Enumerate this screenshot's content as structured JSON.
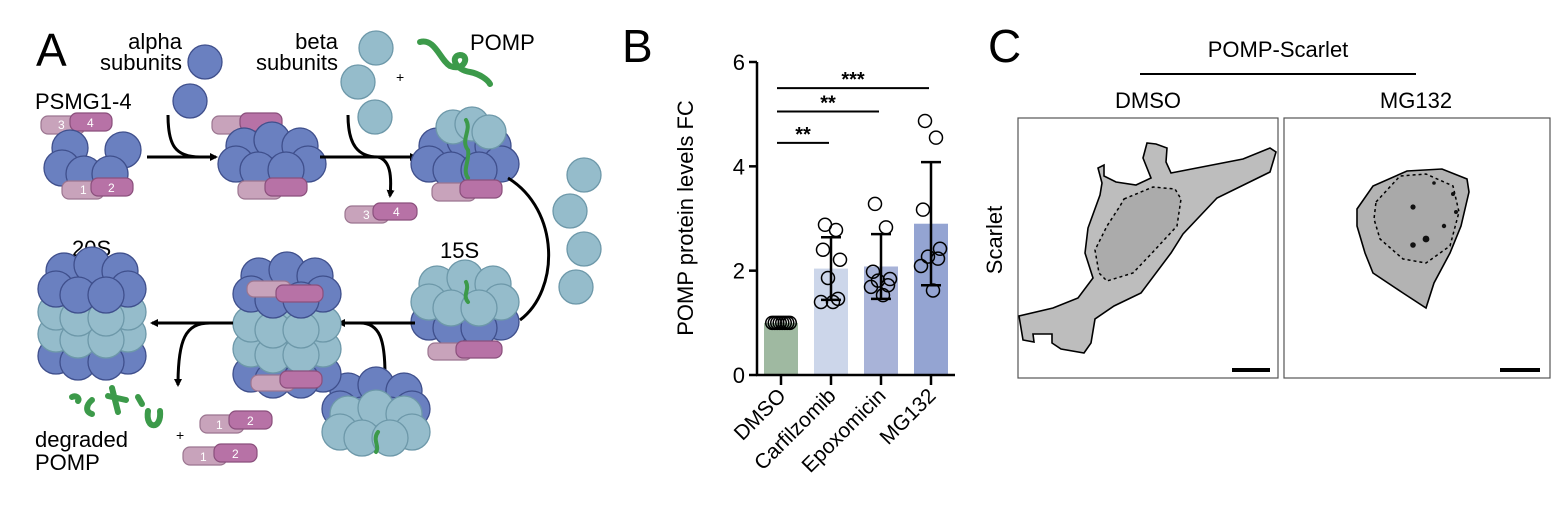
{
  "panel_a": {
    "letter": "A",
    "alpha_label": [
      "alpha",
      "subunits"
    ],
    "beta_label": [
      "beta",
      "subunits"
    ],
    "pomp_label": "POMP",
    "psmg_label": "PSMG1-4",
    "label_15s": "15S",
    "label_20s": "20S",
    "degraded_label": [
      "degraded",
      "POMP"
    ],
    "plus": "+",
    "chaperone_numbers": [
      "1",
      "2",
      "3",
      "4"
    ]
  },
  "panel_b": {
    "letter": "B"
  },
  "panel_c": {
    "letter": "C",
    "title": "POMP-Scarlet",
    "conditions": [
      "DMSO",
      "MG132"
    ],
    "row_label": "Scarlet"
  },
  "chart_data": {
    "type": "bar",
    "title": "",
    "xlabel": "",
    "ylabel": "POMP protein levels FC",
    "ylim": [
      0,
      6
    ],
    "yticks": [
      "0",
      "2",
      "4",
      "6"
    ],
    "categories": [
      "DMSO",
      "Carfilzomib",
      "Epoxomicin",
      "MG132"
    ],
    "values": [
      1.0,
      2.04,
      2.08,
      2.9
    ],
    "error_low": [
      1.0,
      1.44,
      1.46,
      1.72
    ],
    "error_high": [
      1.0,
      2.64,
      2.7,
      4.08
    ],
    "points": [
      [
        1,
        1,
        1,
        1,
        1,
        1,
        1,
        1
      ],
      [
        2.88,
        2.78,
        2.4,
        2.21,
        1.86,
        1.46,
        1.4,
        1.4
      ],
      [
        3.28,
        2.83,
        1.98,
        1.84,
        1.81,
        1.72,
        1.69,
        1.53
      ],
      [
        4.87,
        4.55,
        3.17,
        2.42,
        2.27,
        2.23,
        2.09,
        1.62
      ]
    ],
    "bar_colors": [
      "#9fb9a1",
      "#ccd6ea",
      "#a8b3d8",
      "#94a4d2"
    ],
    "significance": [
      {
        "from": "DMSO",
        "to": "Carfilzomib",
        "label": "**",
        "level": 4.45
      },
      {
        "from": "DMSO",
        "to": "Epoxomicin",
        "label": "**",
        "level": 5.05
      },
      {
        "from": "DMSO",
        "to": "MG132",
        "label": "***",
        "level": 5.5
      }
    ]
  }
}
